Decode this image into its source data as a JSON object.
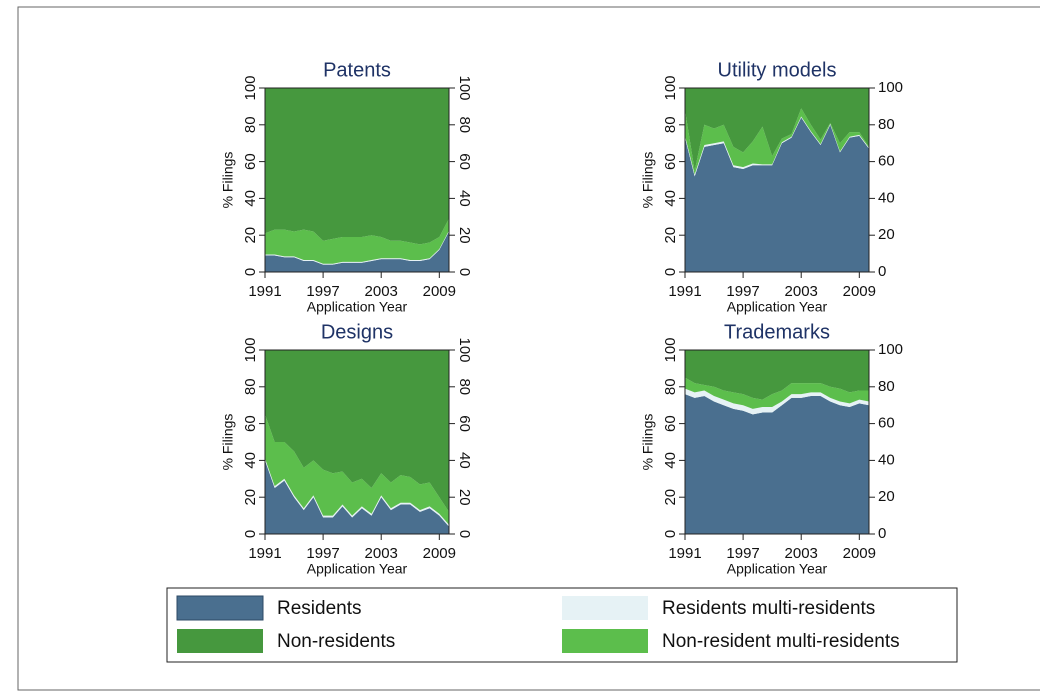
{
  "legend": {
    "entries": [
      {
        "name": "Residents",
        "color": "#4a6f8f"
      },
      {
        "name": "Residents multi-residents",
        "color": "#e6f2f5"
      },
      {
        "name": "Non-resident multi-residents",
        "color": "#5cbe4c"
      },
      {
        "name": "Non-residents",
        "color": "#46983e"
      }
    ]
  },
  "chart_data": [
    {
      "type": "area",
      "stacked": true,
      "title": "Patents",
      "xlabel": "Application Year",
      "ylabel": "% Filings",
      "x": [
        1991,
        1992,
        1993,
        1994,
        1995,
        1996,
        1997,
        1998,
        1999,
        2000,
        2001,
        2002,
        2003,
        2004,
        2005,
        2006,
        2007,
        2008,
        2009,
        2010
      ],
      "xlim": [
        1991,
        2010
      ],
      "xticks": [
        1991,
        1997,
        2003,
        2009
      ],
      "ylim": [
        0,
        100
      ],
      "yticks": [
        0,
        20,
        40,
        60,
        80,
        100
      ],
      "y2lim": [
        0,
        100
      ],
      "y2ticks": [
        0,
        20,
        40,
        60,
        80,
        100
      ],
      "series": [
        {
          "values": [
            9,
            9,
            8,
            8,
            6,
            6,
            4,
            4,
            5,
            5,
            5,
            6,
            7,
            7,
            7,
            6,
            6,
            7,
            12,
            22
          ]
        },
        {
          "values": [
            0.5,
            0.5,
            0.5,
            0.5,
            0.5,
            0.5,
            0.5,
            0.5,
            0.5,
            0.5,
            0.5,
            0.5,
            0.5,
            0.5,
            0.5,
            0.5,
            0.5,
            0.5,
            0.5,
            0.5
          ]
        },
        {
          "values": [
            11.5,
            13.5,
            14.5,
            13.5,
            16.5,
            15.5,
            12.5,
            13.5,
            13.5,
            13.5,
            13.5,
            13.5,
            11.5,
            9.5,
            9.5,
            9.5,
            8.5,
            8.5,
            6.5,
            6.5
          ]
        },
        {
          "values": [
            79,
            77,
            77,
            78,
            77,
            78,
            83,
            82,
            81,
            81,
            81,
            80,
            81,
            83,
            83,
            84,
            85,
            84,
            81,
            71
          ]
        }
      ]
    },
    {
      "type": "area",
      "stacked": true,
      "title": "Utility models",
      "xlabel": "Application Year",
      "ylabel": "% Filings",
      "x": [
        1991,
        1992,
        1993,
        1994,
        1995,
        1996,
        1997,
        1998,
        1999,
        2000,
        2001,
        2002,
        2003,
        2004,
        2005,
        2006,
        2007,
        2008,
        2009,
        2010
      ],
      "xlim": [
        1991,
        2010
      ],
      "xticks": [
        1991,
        1997,
        2003,
        2009
      ],
      "ylim": [
        0,
        100
      ],
      "yticks": [
        0,
        20,
        40,
        60,
        80,
        100
      ],
      "y2lim": [
        0,
        100
      ],
      "y2ticks": [
        0,
        20,
        40,
        60,
        80,
        100
      ],
      "series": [
        {
          "values": [
            73,
            52,
            68,
            69,
            70,
            57,
            56,
            58,
            58,
            58,
            70,
            73,
            84,
            76,
            69,
            80,
            65,
            73,
            74,
            67
          ]
        },
        {
          "values": [
            1,
            1,
            1,
            1,
            1,
            1,
            1,
            1,
            0.5,
            0.5,
            0.5,
            0.5,
            0.5,
            0.5,
            0.5,
            0.5,
            0.5,
            0.5,
            0.5,
            0.5
          ]
        },
        {
          "values": [
            14,
            2,
            11,
            8,
            9,
            10,
            8,
            12,
            20.5,
            4.5,
            2,
            1.5,
            4.5,
            3.5,
            2.5,
            0.5,
            4.5,
            2.5,
            1.5,
            0.5
          ]
        },
        {
          "values": [
            12,
            45,
            20,
            22,
            20,
            32,
            35,
            29,
            21,
            37,
            27.5,
            25,
            11,
            20,
            28,
            19,
            30,
            24,
            24,
            32
          ]
        }
      ]
    },
    {
      "type": "area",
      "stacked": true,
      "title": "Designs",
      "xlabel": "Application Year",
      "ylabel": "% Filings",
      "x": [
        1991,
        1992,
        1993,
        1994,
        1995,
        1996,
        1997,
        1998,
        1999,
        2000,
        2001,
        2002,
        2003,
        2004,
        2005,
        2006,
        2007,
        2008,
        2009,
        2010
      ],
      "xlim": [
        1991,
        2010
      ],
      "xticks": [
        1991,
        1997,
        2003,
        2009
      ],
      "ylim": [
        0,
        100
      ],
      "yticks": [
        0,
        20,
        40,
        60,
        80,
        100
      ],
      "y2lim": [
        0,
        100
      ],
      "y2ticks": [
        0,
        20,
        40,
        60,
        80,
        100
      ],
      "series": [
        {
          "values": [
            40,
            25,
            29,
            20,
            13,
            20,
            9,
            9,
            15,
            9,
            14,
            10,
            20,
            13,
            16,
            16,
            12,
            14,
            10,
            4
          ]
        },
        {
          "values": [
            1,
            1,
            1,
            1,
            1,
            1,
            1,
            1,
            1,
            1,
            1,
            1,
            1,
            1,
            1,
            1,
            1,
            1,
            1,
            1
          ]
        },
        {
          "values": [
            24,
            24,
            20,
            24,
            22,
            19,
            25,
            23,
            18,
            18,
            15,
            14,
            12,
            14,
            15,
            14,
            14,
            13,
            9,
            7
          ]
        },
        {
          "values": [
            35,
            50,
            50,
            55,
            64,
            60,
            65,
            67,
            66,
            72,
            70,
            75,
            67,
            72,
            68,
            69,
            73,
            72,
            80,
            88
          ]
        }
      ]
    },
    {
      "type": "area",
      "stacked": true,
      "title": "Trademarks",
      "xlabel": "Application Year",
      "ylabel": "% Filings",
      "x": [
        1991,
        1992,
        1993,
        1994,
        1995,
        1996,
        1997,
        1998,
        1999,
        2000,
        2001,
        2002,
        2003,
        2004,
        2005,
        2006,
        2007,
        2008,
        2009,
        2010
      ],
      "xlim": [
        1991,
        2010
      ],
      "xticks": [
        1991,
        1997,
        2003,
        2009
      ],
      "ylim": [
        0,
        100
      ],
      "yticks": [
        0,
        20,
        40,
        60,
        80,
        100
      ],
      "y2lim": [
        0,
        100
      ],
      "y2ticks": [
        0,
        20,
        40,
        60,
        80,
        100
      ],
      "series": [
        {
          "values": [
            76,
            74,
            75,
            72,
            70,
            68,
            67,
            65,
            66,
            66,
            70,
            74,
            74,
            75,
            75,
            72,
            70,
            69,
            71,
            70
          ]
        },
        {
          "values": [
            3,
            3,
            3,
            3,
            3,
            3,
            3,
            3,
            3,
            3,
            2,
            2,
            2,
            2,
            2,
            2,
            2,
            2,
            2,
            2
          ]
        },
        {
          "values": [
            6,
            5,
            3,
            5,
            5,
            6,
            6,
            6,
            4,
            7,
            6,
            6,
            6,
            5,
            5,
            6,
            7,
            6,
            5,
            6
          ]
        },
        {
          "values": [
            15,
            18,
            19,
            20,
            22,
            23,
            24,
            26,
            27,
            24,
            22,
            18,
            18,
            18,
            18,
            20,
            21,
            23,
            22,
            22
          ]
        }
      ]
    }
  ]
}
